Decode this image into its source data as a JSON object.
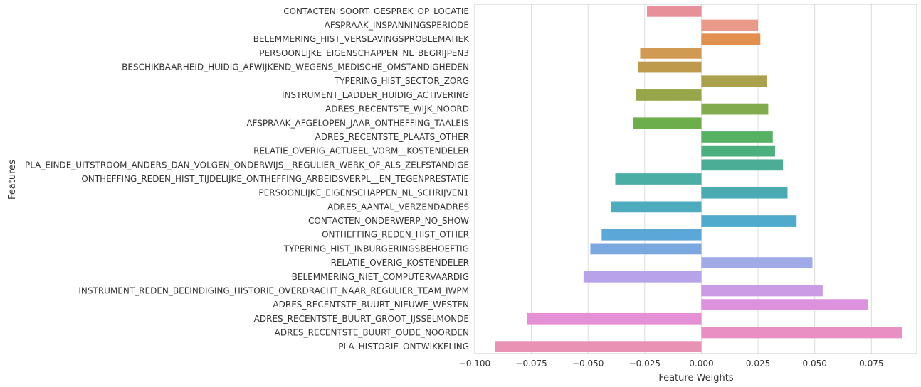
{
  "chart_data": {
    "type": "bar",
    "orientation": "horizontal",
    "title": "",
    "xlabel": "Feature Weights",
    "ylabel": "Features",
    "xlim": [
      -0.1,
      0.095
    ],
    "x_ticks": [
      -0.1,
      -0.075,
      -0.05,
      -0.025,
      0.0,
      0.025,
      0.05,
      0.075
    ],
    "x_tick_labels": [
      "−0.100",
      "−0.075",
      "−0.050",
      "−0.025",
      "0.000",
      "0.025",
      "0.050",
      "0.075"
    ],
    "grid": true,
    "legend": "none",
    "categories": [
      "CONTACTEN_SOORT_GESPREK_OP_LOCATIE",
      "AFSPRAAK_INSPANNINGSPERIODE",
      "BELEMMERING_HIST_VERSLAVINGSPROBLEMATIEK",
      "PERSOONLIJKE_EIGENSCHAPPEN_NL_BEGRIJPEN3",
      "BESCHIKBAARHEID_HUIDIG_AFWIJKEND_WEGENS_MEDISCHE_OMSTANDIGHEDEN",
      "TYPERING_HIST_SECTOR_ZORG",
      "INSTRUMENT_LADDER_HUIDIG_ACTIVERING",
      "ADRES_RECENTSTE_WIJK_NOORD",
      "AFSPRAAK_AFGELOPEN_JAAR_ONTHEFFING_TAALEIS",
      "ADRES_RECENTSTE_PLAATS_OTHER",
      "RELATIE_OVERIG_ACTUEEL_VORM__KOSTENDELER",
      "PLA_EINDE_UITSTROOM_ANDERS_DAN_VOLGEN_ONDERWIJS__REGULIER_WERK_OF_ALS_ZELFSTANDIGE",
      "ONTHEFFING_REDEN_HIST_TIJDELIJKE_ONTHEFFING_ARBEIDSVERPL__EN_TEGENPRESTATIE",
      "PERSOONLIJKE_EIGENSCHAPPEN_NL_SCHRIJVEN1",
      "ADRES_AANTAL_VERZENDADRES",
      "CONTACTEN_ONDERWERP_NO_SHOW",
      "ONTHEFFING_REDEN_HIST_OTHER",
      "TYPERING_HIST_INBURGERINGSBEHOEFTIG",
      "RELATIE_OVERIG_KOSTENDELER",
      "BELEMMERING_NIET_COMPUTERVAARDIG",
      "INSTRUMENT_REDEN_BEEINDIGING_HISTORIE_OVERDRACHT_NAAR_REGULIER_TEAM_IWPM",
      "ADRES_RECENTSTE_BUURT_NIEUWE_WESTEN",
      "ADRES_RECENTSTE_BUURT_GROOT_IJSSELMONDE",
      "ADRES_RECENTSTE_BUURT_OUDE_NOORDEN",
      "PLA_HISTORIE_ONTWIKKELING"
    ],
    "values": [
      -0.024,
      0.025,
      0.026,
      -0.027,
      -0.028,
      0.029,
      -0.029,
      0.0295,
      -0.03,
      0.0315,
      0.0325,
      0.036,
      -0.038,
      0.038,
      -0.04,
      0.042,
      -0.044,
      -0.049,
      0.049,
      -0.052,
      0.0535,
      0.0735,
      -0.077,
      0.0885,
      -0.091
    ],
    "colors": [
      "#e8909a",
      "#e99a88",
      "#e3904e",
      "#d09a52",
      "#be9a4c",
      "#a9a24a",
      "#98a64a",
      "#82ab4b",
      "#6cad4c",
      "#55b163",
      "#4cb07e",
      "#4bae94",
      "#4baea4",
      "#4aacb2",
      "#4cabbd",
      "#50aacb",
      "#5aa7d8",
      "#7ba7e0",
      "#9faae7",
      "#b7a3ea",
      "#cc9be6",
      "#dd92e0",
      "#e58fd4",
      "#e890c4",
      "#e893b4"
    ]
  }
}
